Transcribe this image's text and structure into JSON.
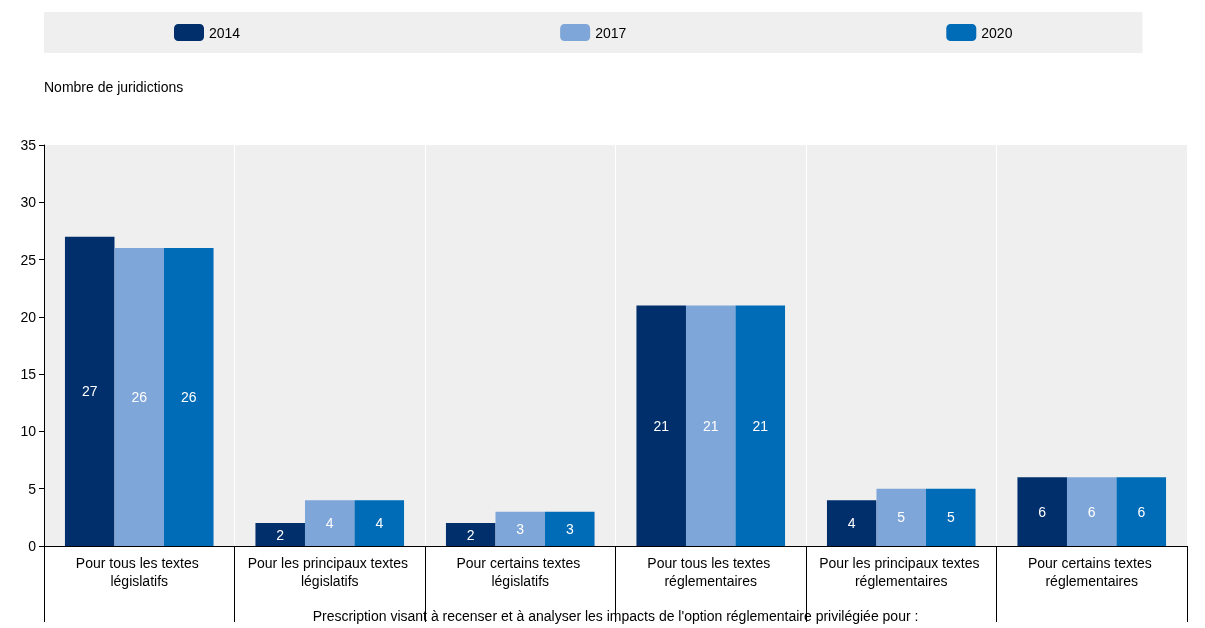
{
  "chart_data": {
    "type": "bar",
    "categories": [
      "Pour tous les textes législatifs",
      "Pour les principaux textes législatifs",
      "Pour certains textes législatifs",
      "Pour tous les textes réglementaires",
      "Pour les principaux textes réglementaires",
      "Pour certains textes réglementaires"
    ],
    "series": [
      {
        "name": "2014",
        "color": "#002f6c",
        "values": [
          27,
          2,
          2,
          21,
          4,
          6
        ]
      },
      {
        "name": "2017",
        "color": "#7fa6d8",
        "values": [
          26,
          4,
          3,
          21,
          5,
          6
        ]
      },
      {
        "name": "2020",
        "color": "#006bb6",
        "values": [
          26,
          4,
          3,
          21,
          5,
          6
        ]
      }
    ],
    "xlabel": "Prescription visant à recenser et à analyser les impacts de l'option réglementaire privilégiée pour :",
    "ylabel": "Nombre de juridictions",
    "ylim": [
      0,
      35
    ],
    "yticks": [
      0,
      5,
      10,
      15,
      20,
      25,
      30,
      35
    ],
    "grid": "x",
    "legend": "top",
    "data_labels": true
  }
}
